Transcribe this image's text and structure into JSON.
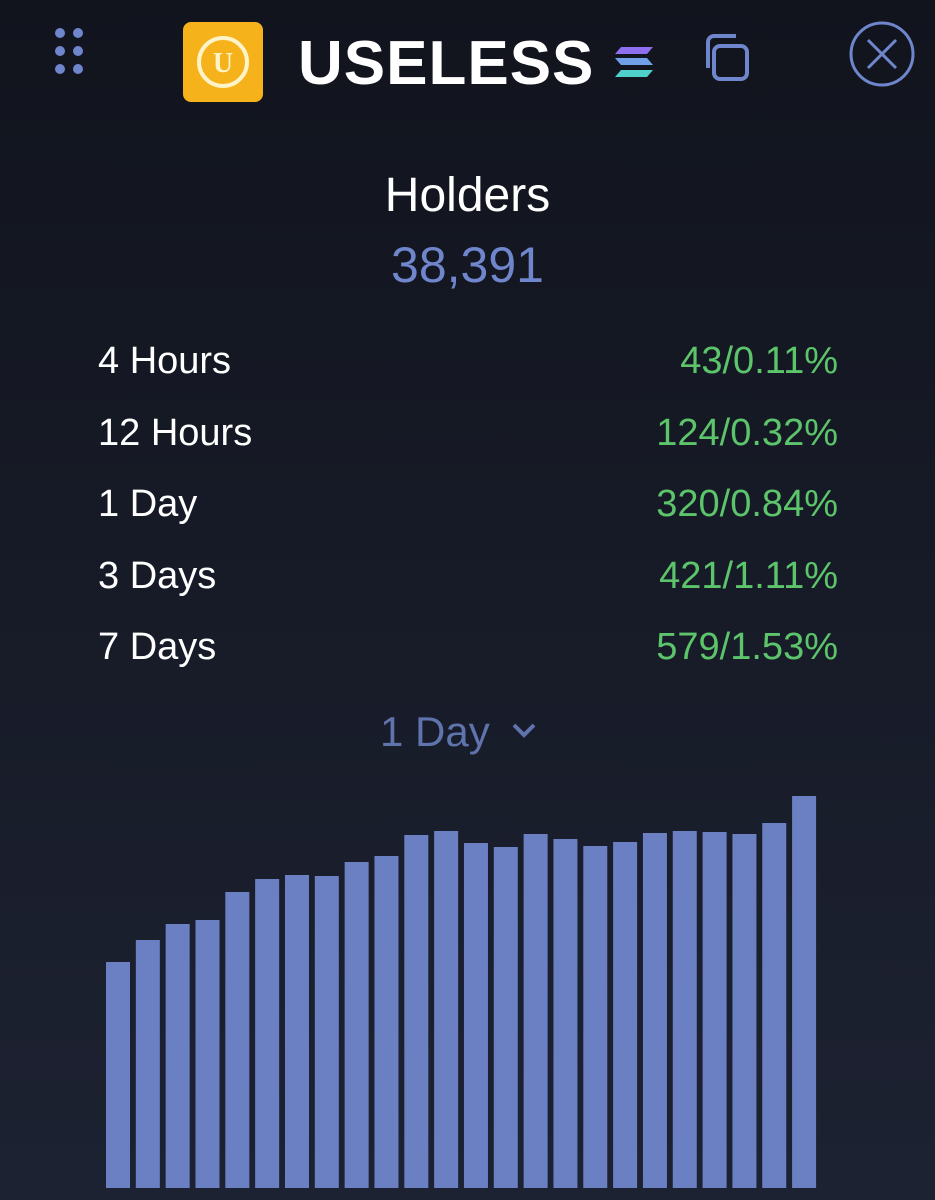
{
  "header": {
    "title": "USELESS"
  },
  "holders": {
    "label": "Holders",
    "value": "38,391"
  },
  "stats": [
    {
      "period": "4 Hours",
      "change": "43/0.11%"
    },
    {
      "period": "12 Hours",
      "change": "124/0.32%"
    },
    {
      "period": "1 Day",
      "change": "320/0.84%"
    },
    {
      "period": "3 Days",
      "change": "421/1.11%"
    },
    {
      "period": "7 Days",
      "change": "579/1.53%"
    }
  ],
  "selector": "1 Day",
  "chart_data": {
    "type": "bar",
    "color": "#6a80c2",
    "ylim": [
      0,
      400
    ],
    "values": [
      226,
      248,
      264,
      268,
      296,
      309,
      313,
      312,
      326,
      332,
      353,
      357,
      345,
      341,
      354,
      349,
      342,
      346,
      355,
      357,
      356,
      354,
      365,
      392
    ]
  }
}
